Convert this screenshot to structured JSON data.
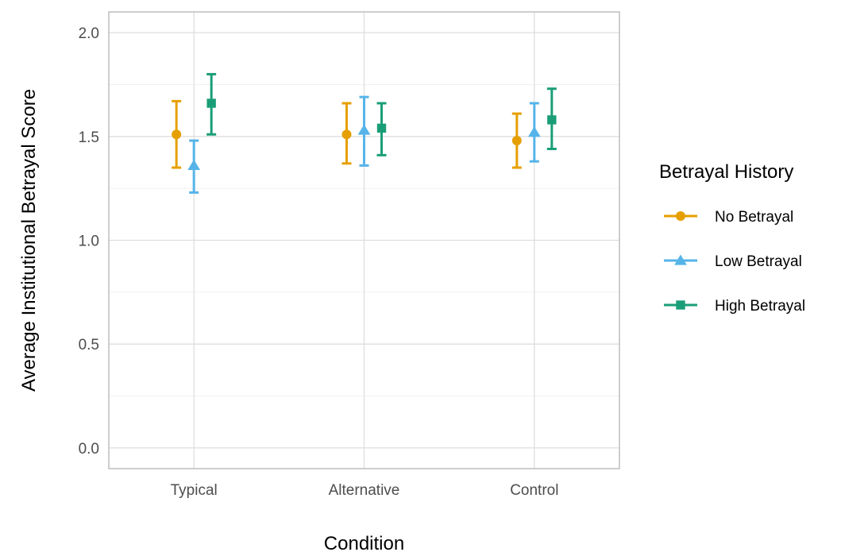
{
  "chart_data": {
    "type": "errorbar",
    "title": "",
    "xlabel": "Condition",
    "ylabel": "Average Institutional Betrayal Score",
    "categories": [
      "Typical",
      "Alternative",
      "Control"
    ],
    "ylim": [
      -0.1,
      2.1
    ],
    "yticks": [
      "0.0",
      "0.5",
      "1.0",
      "1.5",
      "2.0"
    ],
    "grid": true,
    "legend": {
      "title": "Betrayal History",
      "position": "right"
    },
    "series": [
      {
        "name": "No Betrayal",
        "color": "#E69F00",
        "marker": "circle",
        "values": [
          1.51,
          1.51,
          1.48
        ],
        "lower": [
          1.35,
          1.37,
          1.35
        ],
        "upper": [
          1.67,
          1.66,
          1.61
        ]
      },
      {
        "name": "Low Betrayal",
        "color": "#56B4E9",
        "marker": "triangle",
        "values": [
          1.36,
          1.53,
          1.52
        ],
        "lower": [
          1.23,
          1.36,
          1.38
        ],
        "upper": [
          1.48,
          1.69,
          1.66
        ]
      },
      {
        "name": "High Betrayal",
        "color": "#1A9E77",
        "marker": "square",
        "values": [
          1.66,
          1.54,
          1.58
        ],
        "lower": [
          1.51,
          1.41,
          1.44
        ],
        "upper": [
          1.8,
          1.66,
          1.73
        ]
      }
    ]
  }
}
